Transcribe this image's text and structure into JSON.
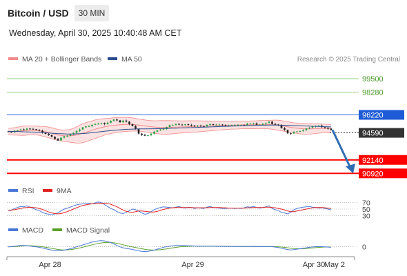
{
  "header": {
    "title": "Bitcoin / USD",
    "timeframe": "30 MIN",
    "datetime": "Wednesday, April 30, 2025 10:40:48 AM CET"
  },
  "credit": "Research © 2025 Trading Central",
  "colors": {
    "bb": "#f28b8b",
    "bb_fill": "#fbe1e1",
    "ma50": "#2a4d8f",
    "up": "#2ea043",
    "down": "#222222",
    "resistance_green": "#8fd07a",
    "pivot": "#1e5bd6",
    "support": "#ff0000",
    "current": "#333333",
    "rsi": "#4a78d6",
    "rsi_ma": "#e02020",
    "macd": "#4a78d6",
    "macd_signal": "#5aa02c",
    "arrow": "#2e6db4"
  },
  "chart_data": [
    {
      "type": "candlestick",
      "title": "Bitcoin / USD",
      "legend": [
        {
          "label": "MA 20 + Bollinger Bands",
          "color": "#f28b8b"
        },
        {
          "label": "MA 50",
          "color": "#2a4d8f"
        }
      ],
      "ylim": [
        90500,
        100500
      ],
      "x_ticks": [
        "Apr 28",
        "Apr 29",
        "Apr 30",
        "May 2"
      ],
      "price_closes": [
        94690,
        94650,
        94780,
        94830,
        94900,
        94870,
        94980,
        94950,
        94920,
        94860,
        94790,
        94620,
        94500,
        94380,
        94250,
        94050,
        93900,
        94150,
        94280,
        94330,
        94450,
        94600,
        94760,
        94900,
        95090,
        95180,
        95200,
        95320,
        95390,
        95420,
        95470,
        95380,
        95510,
        95690,
        95800,
        95720,
        95550,
        95700,
        95610,
        95380,
        95210,
        94940,
        94520,
        94410,
        94330,
        94370,
        94520,
        94700,
        94820,
        94900,
        94950,
        95120,
        95290,
        95310,
        95400,
        95340,
        95290,
        95370,
        95310,
        95260,
        95180,
        95240,
        95210,
        95170,
        95310,
        95380,
        95340,
        95340,
        95340,
        95300,
        95250,
        95250,
        95300,
        95300,
        95300,
        95300,
        95290,
        95420,
        95430,
        95450,
        95330,
        95340,
        95420,
        95480,
        95610,
        95400,
        95350,
        95300,
        95020,
        94850,
        94550,
        94530,
        94670,
        94720,
        94750,
        94830,
        94990,
        95070,
        95160,
        95230,
        95250,
        95110,
        95050,
        94970,
        94850
      ],
      "bb_upper": [
        95000,
        95020,
        95060,
        95100,
        95160,
        95200,
        95220,
        95220,
        95210,
        95200,
        95190,
        95180,
        95160,
        95120,
        95050,
        94980,
        94900,
        94870,
        94850,
        94860,
        94900,
        95000,
        95130,
        95280,
        95420,
        95520,
        95600,
        95680,
        95760,
        95820,
        95860,
        95880,
        95900,
        95930,
        95960,
        95980,
        95990,
        96000,
        95990,
        95980,
        95950,
        95900,
        95850,
        95800,
        95760,
        95720,
        95700,
        95690,
        95690,
        95700,
        95700,
        95700,
        95700,
        95690,
        95690,
        95680,
        95680,
        95680,
        95690,
        95690,
        95690,
        95690,
        95680,
        95670,
        95670,
        95670,
        95660,
        95660,
        95660,
        95660,
        95650,
        95650,
        95650,
        95650,
        95660,
        95660,
        95660,
        95660,
        95670,
        95680,
        95690,
        95700,
        95710,
        95720,
        95730,
        95740,
        95750,
        95740,
        95700,
        95650,
        95600,
        95550,
        95500,
        95480,
        95460,
        95450,
        95440,
        95430,
        95420,
        95410,
        95400,
        95390,
        95380,
        95370,
        95360
      ],
      "bb_mid": [
        94700,
        94710,
        94720,
        94740,
        94760,
        94780,
        94800,
        94810,
        94810,
        94800,
        94780,
        94740,
        94690,
        94630,
        94560,
        94480,
        94400,
        94360,
        94330,
        94320,
        94320,
        94350,
        94400,
        94470,
        94560,
        94650,
        94740,
        94830,
        94920,
        95000,
        95070,
        95130,
        95180,
        95230,
        95270,
        95300,
        95330,
        95350,
        95360,
        95360,
        95350,
        95330,
        95300,
        95260,
        95220,
        95180,
        95150,
        95120,
        95100,
        95090,
        95080,
        95080,
        95090,
        95100,
        95110,
        95120,
        95130,
        95140,
        95150,
        95160,
        95170,
        95180,
        95190,
        95200,
        95210,
        95220,
        95230,
        95240,
        95250,
        95260,
        95270,
        95280,
        95290,
        95290,
        95300,
        95310,
        95310,
        95320,
        95320,
        95330,
        95330,
        95330,
        95340,
        95340,
        95340,
        95330,
        95310,
        95280,
        95240,
        95190,
        95140,
        95090,
        95050,
        95010,
        94980,
        94960,
        94950,
        94950,
        94960,
        94970,
        94980,
        94990,
        94990,
        94990,
        94980
      ],
      "bb_lower": [
        94400,
        94400,
        94380,
        94380,
        94360,
        94360,
        94380,
        94400,
        94410,
        94400,
        94370,
        94300,
        94220,
        94140,
        94070,
        93980,
        93900,
        93850,
        93810,
        93780,
        93740,
        93700,
        93670,
        93660,
        93700,
        93780,
        93880,
        93980,
        94080,
        94180,
        94280,
        94380,
        94460,
        94530,
        94580,
        94620,
        94670,
        94700,
        94730,
        94740,
        94750,
        94760,
        94750,
        94720,
        94680,
        94640,
        94600,
        94550,
        94510,
        94480,
        94460,
        94460,
        94480,
        94510,
        94530,
        94560,
        94580,
        94600,
        94610,
        94630,
        94650,
        94670,
        94700,
        94730,
        94750,
        94770,
        94800,
        94820,
        94840,
        94860,
        94890,
        94910,
        94930,
        94930,
        94940,
        94960,
        94960,
        94980,
        94970,
        94980,
        94970,
        94960,
        94970,
        94960,
        94950,
        94920,
        94870,
        94820,
        94780,
        94730,
        94680,
        94630,
        94600,
        94540,
        94500,
        94470,
        94460,
        94470,
        94500,
        94530,
        94560,
        94590,
        94600,
        94610,
        94600
      ],
      "ma50": [
        94730,
        94720,
        94720,
        94710,
        94700,
        94690,
        94680,
        94670,
        94660,
        94650,
        94640,
        94620,
        94600,
        94580,
        94560,
        94540,
        94520,
        94510,
        94500,
        94490,
        94490,
        94490,
        94500,
        94510,
        94530,
        94550,
        94580,
        94610,
        94640,
        94670,
        94700,
        94730,
        94760,
        94790,
        94820,
        94850,
        94870,
        94890,
        94910,
        94920,
        94930,
        94940,
        94950,
        94950,
        94950,
        94950,
        94960,
        94960,
        94970,
        94970,
        94980,
        94990,
        95000,
        95010,
        95020,
        95030,
        95040,
        95050,
        95060,
        95070,
        95080,
        95090,
        95100,
        95110,
        95120,
        95130,
        95140,
        95150,
        95160,
        95170,
        95180,
        95190,
        95200,
        95210,
        95220,
        95230,
        95240,
        95250,
        95260,
        95270,
        95280,
        95280,
        95290,
        95290,
        95300,
        95300,
        95300,
        95300,
        95290,
        95280,
        95270,
        95260,
        95250,
        95240,
        95230,
        95220,
        95210,
        95200,
        95190,
        95180,
        95170,
        95160,
        95150,
        95140,
        95130
      ],
      "levels": [
        {
          "label": "99500",
          "value": 99500,
          "kind": "resistance"
        },
        {
          "label": "98280",
          "value": 98280,
          "kind": "resistance"
        },
        {
          "label": "96220",
          "value": 96220,
          "kind": "pivot"
        },
        {
          "label": "94590",
          "value": 94590,
          "kind": "current"
        },
        {
          "label": "92140",
          "value": 92140,
          "kind": "support"
        },
        {
          "label": "90920",
          "value": 90920,
          "kind": "support"
        }
      ],
      "projection": {
        "from": 94850,
        "to": 90920
      }
    },
    {
      "type": "line",
      "legend": [
        {
          "label": "RSI",
          "color": "#4a78d6"
        },
        {
          "label": "9MA",
          "color": "#e02020"
        }
      ],
      "ylim": [
        20,
        80
      ],
      "y_ticks": [
        {
          "label": "70",
          "value": 70
        },
        {
          "label": "50",
          "value": 50
        },
        {
          "label": "30",
          "value": 30
        }
      ],
      "rsi": [
        45,
        46,
        52,
        55,
        58,
        57,
        60,
        56,
        52,
        48,
        45,
        40,
        36,
        34,
        32,
        35,
        38,
        45,
        50,
        53,
        56,
        60,
        63,
        65,
        66,
        67,
        68,
        66,
        69,
        72,
        70,
        64,
        58,
        52,
        48,
        42,
        38,
        36,
        40,
        45,
        50,
        48,
        44,
        38,
        34,
        36,
        42,
        48,
        52,
        55,
        57,
        56,
        55,
        54,
        56,
        58,
        55,
        53,
        56,
        55,
        52,
        54,
        53,
        52,
        56,
        58,
        55,
        54,
        53,
        52,
        52,
        53,
        53,
        52,
        53,
        52,
        54,
        57,
        56,
        58,
        55,
        53,
        55,
        57,
        60,
        52,
        48,
        45,
        40,
        38,
        35,
        40,
        48,
        52,
        54,
        56,
        57,
        58,
        56,
        55,
        53,
        54,
        52,
        50,
        47
      ],
      "ma9": [
        46,
        47,
        48,
        50,
        52,
        54,
        55,
        56,
        55,
        54,
        52,
        49,
        45,
        41,
        38,
        36,
        35,
        36,
        39,
        42,
        46,
        50,
        54,
        58,
        61,
        63,
        65,
        66,
        67,
        68,
        68,
        68,
        67,
        65,
        61,
        57,
        52,
        47,
        43,
        41,
        40,
        42,
        44,
        44,
        43,
        42,
        41,
        41,
        43,
        46,
        49,
        51,
        53,
        54,
        55,
        55,
        55,
        55,
        55,
        55,
        54,
        54,
        54,
        54,
        54,
        55,
        55,
        55,
        55,
        54,
        54,
        53,
        53,
        53,
        53,
        53,
        53,
        54,
        54,
        55,
        55,
        55,
        55,
        56,
        56,
        55,
        54,
        52,
        50,
        47,
        44,
        42,
        42,
        44,
        46,
        48,
        50,
        52,
        54,
        55,
        55,
        55,
        54,
        53,
        52
      ]
    },
    {
      "type": "line",
      "legend": [
        {
          "label": "MACD",
          "color": "#4a78d6"
        },
        {
          "label": "MACD Signal",
          "color": "#5aa02c"
        }
      ],
      "ylim": [
        -300,
        400
      ],
      "y_ticks": [
        {
          "label": "0",
          "value": 0
        }
      ],
      "macd": [
        0,
        10,
        25,
        40,
        55,
        60,
        50,
        35,
        15,
        0,
        -20,
        -50,
        -80,
        -110,
        -140,
        -160,
        -170,
        -160,
        -140,
        -110,
        -80,
        -40,
        0,
        40,
        80,
        120,
        160,
        200,
        230,
        250,
        260,
        250,
        220,
        180,
        120,
        60,
        0,
        -40,
        -70,
        -90,
        -110,
        -140,
        -170,
        -190,
        -200,
        -190,
        -170,
        -140,
        -100,
        -60,
        -20,
        10,
        30,
        45,
        55,
        60,
        55,
        50,
        45,
        40,
        35,
        30,
        28,
        25,
        28,
        30,
        28,
        25,
        22,
        20,
        18,
        16,
        15,
        14,
        13,
        12,
        12,
        14,
        16,
        18,
        15,
        10,
        8,
        10,
        15,
        5,
        -10,
        -30,
        -60,
        -90,
        -120,
        -130,
        -120,
        -100,
        -80,
        -60,
        -40,
        -20,
        -5,
        5,
        10,
        5,
        0,
        -10,
        -20
      ],
      "signal": [
        0,
        5,
        12,
        22,
        32,
        42,
        48,
        46,
        40,
        30,
        18,
        2,
        -18,
        -40,
        -64,
        -88,
        -110,
        -124,
        -130,
        -128,
        -118,
        -100,
        -76,
        -48,
        -16,
        18,
        52,
        86,
        118,
        146,
        168,
        182,
        188,
        184,
        170,
        148,
        118,
        86,
        54,
        24,
        -2,
        -28,
        -54,
        -80,
        -104,
        -122,
        -134,
        -138,
        -134,
        -122,
        -106,
        -86,
        -64,
        -42,
        -22,
        -6,
        6,
        16,
        24,
        30,
        32,
        32,
        32,
        31,
        30,
        30,
        30,
        29,
        28,
        26,
        24,
        22,
        20,
        18,
        17,
        16,
        15,
        15,
        15,
        15,
        15,
        14,
        13,
        12,
        12,
        11,
        8,
        2,
        -8,
        -22,
        -40,
        -58,
        -72,
        -80,
        -82,
        -78,
        -70,
        -60,
        -48,
        -36,
        -24,
        -14,
        -8,
        -6,
        -8
      ]
    }
  ]
}
